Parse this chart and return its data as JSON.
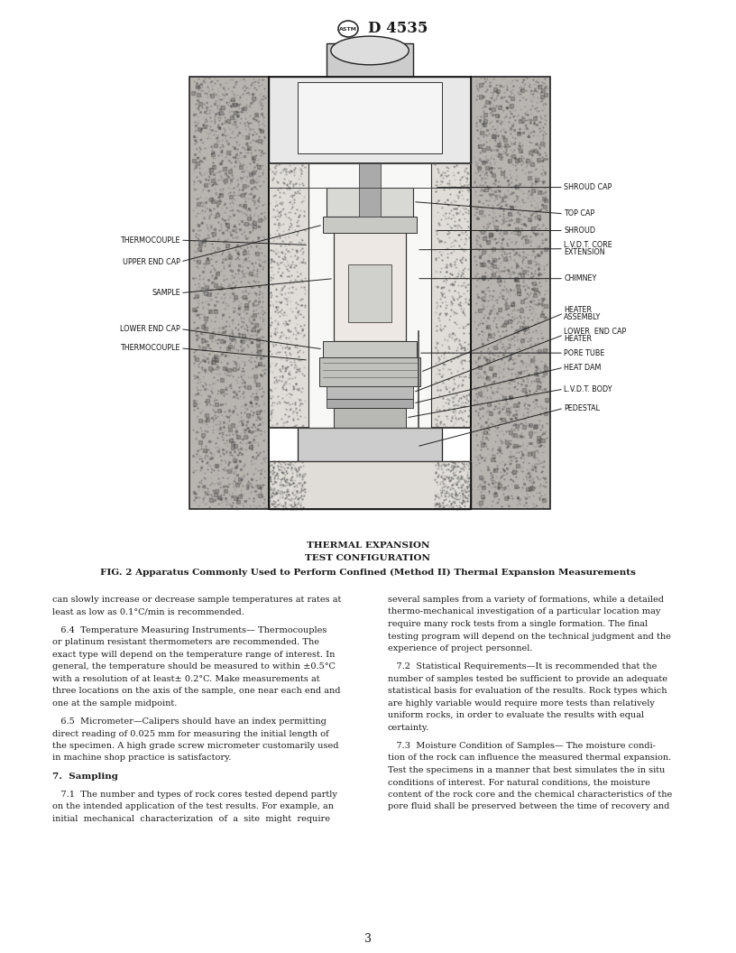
{
  "page_width": 8.16,
  "page_height": 10.56,
  "dpi": 100,
  "background_color": "#ffffff",
  "header_standard_text": "D 4535",
  "figure_caption_line1": "THERMAL EXPANSION",
  "figure_caption_line2": "TEST CONFIGURATION",
  "figure_label": "FIG. 2 Apparatus Commonly Used to Perform Confined (Method II) Thermal Expansion Measurements",
  "page_number": "3",
  "left_column_text": [
    "can slowly increase or decrease sample temperatures at rates at",
    "least as low as 0.1°C/min is recommended.",
    "",
    "   6.4  Temperature Measuring Instruments— Thermocouples",
    "or platinum resistant thermometers are recommended. The",
    "exact type will depend on the temperature range of interest. In",
    "general, the temperature should be measured to within ±0.5°C",
    "with a resolution of at least± 0.2°C. Make measurements at",
    "three locations on the axis of the sample, one near each end and",
    "one at the sample midpoint.",
    "",
    "   6.5  Micrometer—Calipers should have an index permitting",
    "direct reading of 0.025 mm for measuring the initial length of",
    "the specimen. A high grade screw micrometer customarily used",
    "in machine shop practice is satisfactory.",
    "",
    "7.  Sampling",
    "",
    "   7.1  The number and types of rock cores tested depend partly",
    "on the intended application of the test results. For example, an",
    "initial  mechanical  characterization  of  a  site  might  require"
  ],
  "right_column_text": [
    "several samples from a variety of formations, while a detailed",
    "thermo-mechanical investigation of a particular location may",
    "require many rock tests from a single formation. The final",
    "testing program will depend on the technical judgment and the",
    "experience of project personnel.",
    "",
    "   7.2  Statistical Requirements—It is recommended that the",
    "number of samples tested be sufficient to provide an adequate",
    "statistical basis for evaluation of the results. Rock types which",
    "are highly variable would require more tests than relatively",
    "uniform rocks, in order to evaluate the results with equal",
    "certainty.",
    "",
    "   7.3  Moisture Condition of Samples— The moisture condi-",
    "tion of the rock can influence the measured thermal expansion.",
    "Test the specimens in a manner that best simulates the in situ",
    "conditions of interest. For natural conditions, the moisture",
    "content of the rock core and the chemical characteristics of the",
    "pore fluid shall be preserved between the time of recovery and"
  ]
}
